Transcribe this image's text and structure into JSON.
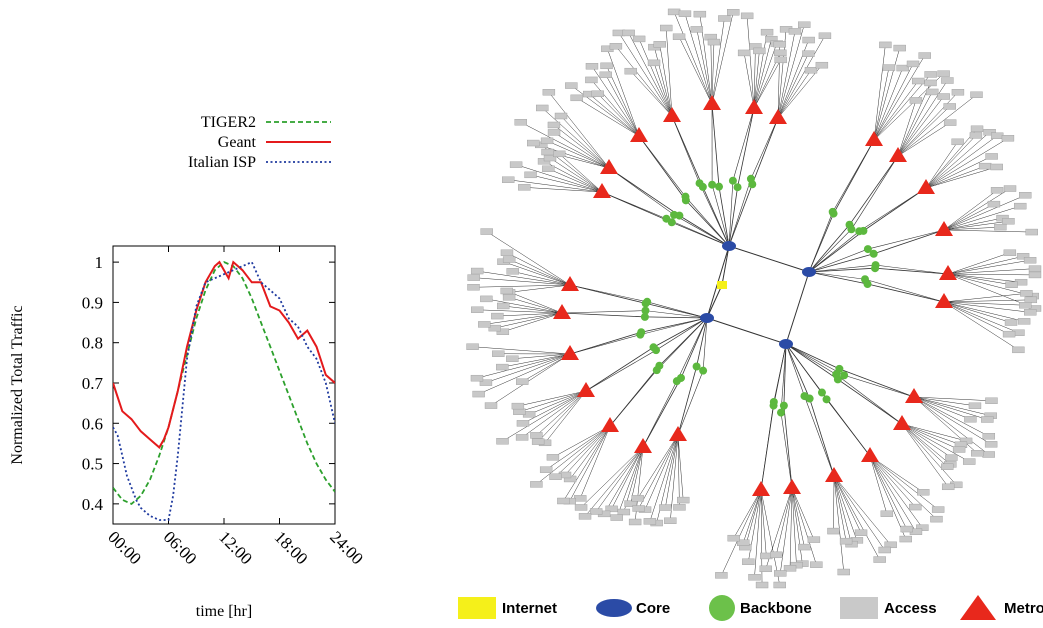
{
  "chart_data": {
    "type": "line",
    "xlabel": "time [hr]",
    "ylabel": "Normalized Total Traffic",
    "xlim": [
      0,
      24
    ],
    "ylim": [
      0.35,
      1.04
    ],
    "x_ticks": [
      "00:00",
      "06:00",
      "12:00",
      "18:00",
      "24:00"
    ],
    "y_ticks": [
      "0.4",
      "0.5",
      "0.6",
      "0.7",
      "0.8",
      "0.9",
      "1"
    ],
    "grid": false,
    "legend_position": "above plot",
    "series": [
      {
        "name": "TIGER2",
        "style": "dashed",
        "color": "#2ca02c",
        "x": [
          0,
          1,
          2,
          3,
          4,
          5,
          6,
          7,
          8,
          9,
          10,
          11,
          12,
          13,
          14,
          15,
          16,
          17,
          18,
          19,
          20,
          21,
          22,
          23,
          24
        ],
        "y": [
          0.44,
          0.41,
          0.4,
          0.42,
          0.46,
          0.52,
          0.59,
          0.68,
          0.77,
          0.86,
          0.93,
          0.98,
          1.0,
          0.99,
          0.96,
          0.91,
          0.85,
          0.79,
          0.73,
          0.67,
          0.61,
          0.55,
          0.5,
          0.46,
          0.43
        ]
      },
      {
        "name": "Geant",
        "style": "solid",
        "color": "#e41a1c",
        "x": [
          0,
          1,
          2,
          3,
          4,
          4.5,
          5,
          5.5,
          6,
          7,
          8,
          9,
          10,
          11,
          11.5,
          12,
          12.5,
          13,
          13.5,
          14,
          15,
          16,
          17,
          18,
          19,
          20,
          21,
          22,
          23,
          24
        ],
        "y": [
          0.7,
          0.63,
          0.61,
          0.58,
          0.56,
          0.55,
          0.54,
          0.56,
          0.59,
          0.68,
          0.79,
          0.88,
          0.95,
          0.99,
          1.0,
          0.98,
          0.96,
          1.0,
          0.99,
          0.98,
          0.95,
          0.95,
          0.89,
          0.88,
          0.85,
          0.81,
          0.83,
          0.79,
          0.72,
          0.7
        ]
      },
      {
        "name": "Italian ISP",
        "style": "dotted",
        "color": "#1f3a9f",
        "x": [
          0,
          0.5,
          1,
          1.5,
          2,
          2.5,
          3,
          4,
          5,
          6,
          6.5,
          7,
          8,
          9,
          10,
          11,
          12,
          13,
          14,
          15,
          16,
          17,
          18,
          19,
          20,
          21,
          22,
          23,
          24
        ],
        "y": [
          0.59,
          0.57,
          0.52,
          0.47,
          0.44,
          0.41,
          0.39,
          0.37,
          0.36,
          0.36,
          0.42,
          0.52,
          0.76,
          0.89,
          0.95,
          0.96,
          0.97,
          0.98,
          0.99,
          1.0,
          0.95,
          0.93,
          0.91,
          0.86,
          0.84,
          0.79,
          0.76,
          0.7,
          0.6
        ]
      }
    ]
  },
  "network_legend": [
    {
      "label": "Internet",
      "shape": "rect",
      "color": "#f5f01a"
    },
    {
      "label": "Core",
      "shape": "ellipse",
      "color": "#2b4ba6"
    },
    {
      "label": "Backbone",
      "shape": "circle",
      "color": "#6cc14a"
    },
    {
      "label": "Access",
      "shape": "rect",
      "color": "#c9c9c9"
    },
    {
      "label": "Metro",
      "shape": "triangle",
      "color": "#e8281c"
    }
  ],
  "colors": {
    "internet": "#f5f01a",
    "core": "#2b4ba6",
    "backbone": "#5cb83e",
    "access": "#c8c8c8",
    "metro": "#e8281c",
    "edge": "#333333"
  }
}
